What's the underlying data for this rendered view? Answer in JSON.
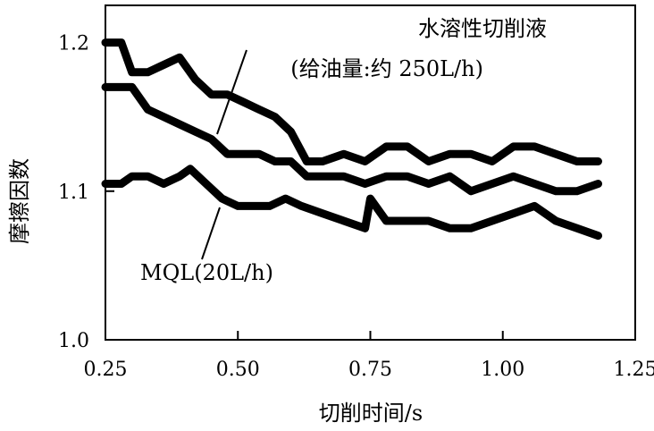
{
  "chart_data": {
    "type": "line",
    "title": "",
    "xlabel": "切削时间/s",
    "ylabel": "摩擦因数",
    "xlim": [
      0.25,
      1.25
    ],
    "ylim": [
      1.0,
      1.225
    ],
    "xticks": [
      0.25,
      0.5,
      0.75,
      1.0,
      1.25
    ],
    "xtick_labels": [
      "0.25",
      "0.50",
      "0.75",
      "1.00",
      "1.25"
    ],
    "yticks": [
      1.0,
      1.1,
      1.2
    ],
    "ytick_labels": [
      "1.0",
      "1.1",
      "1.2"
    ],
    "grid": false,
    "legend": "none",
    "annotations": [
      {
        "text": "水溶性切削液"
      },
      {
        "text": "(给油量:约 250L/h)"
      },
      {
        "text": "MQL(20L/h)"
      }
    ],
    "series": [
      {
        "x": [
          0.25,
          0.28,
          0.3,
          0.33,
          0.36,
          0.39,
          0.42,
          0.45,
          0.48,
          0.51,
          0.54,
          0.57,
          0.6,
          0.63,
          0.66,
          0.7,
          0.74,
          0.78,
          0.82,
          0.86,
          0.9,
          0.94,
          0.98,
          1.02,
          1.06,
          1.1,
          1.14,
          1.18
        ],
        "values": [
          1.2,
          1.2,
          1.18,
          1.18,
          1.185,
          1.19,
          1.175,
          1.165,
          1.165,
          1.16,
          1.155,
          1.15,
          1.14,
          1.12,
          1.12,
          1.125,
          1.12,
          1.13,
          1.13,
          1.12,
          1.125,
          1.125,
          1.12,
          1.13,
          1.13,
          1.125,
          1.12,
          1.12
        ],
        "color": "#000000"
      },
      {
        "x": [
          0.25,
          0.28,
          0.3,
          0.33,
          0.36,
          0.39,
          0.42,
          0.45,
          0.48,
          0.51,
          0.54,
          0.57,
          0.6,
          0.63,
          0.66,
          0.7,
          0.74,
          0.78,
          0.82,
          0.86,
          0.9,
          0.94,
          0.98,
          1.02,
          1.06,
          1.1,
          1.14,
          1.18
        ],
        "values": [
          1.17,
          1.17,
          1.17,
          1.155,
          1.15,
          1.145,
          1.14,
          1.135,
          1.125,
          1.125,
          1.125,
          1.12,
          1.12,
          1.11,
          1.11,
          1.11,
          1.105,
          1.11,
          1.11,
          1.105,
          1.11,
          1.1,
          1.105,
          1.11,
          1.105,
          1.1,
          1.1,
          1.105
        ],
        "color": "#000000"
      },
      {
        "x": [
          0.25,
          0.28,
          0.3,
          0.33,
          0.36,
          0.39,
          0.41,
          0.44,
          0.47,
          0.5,
          0.53,
          0.56,
          0.59,
          0.62,
          0.66,
          0.7,
          0.74,
          0.75,
          0.78,
          0.82,
          0.86,
          0.9,
          0.94,
          0.98,
          1.02,
          1.06,
          1.1,
          1.14,
          1.18
        ],
        "values": [
          1.105,
          1.105,
          1.11,
          1.11,
          1.105,
          1.11,
          1.115,
          1.105,
          1.095,
          1.09,
          1.09,
          1.09,
          1.095,
          1.09,
          1.085,
          1.08,
          1.075,
          1.095,
          1.08,
          1.08,
          1.08,
          1.075,
          1.075,
          1.08,
          1.085,
          1.09,
          1.08,
          1.075,
          1.07
        ],
        "color": "#000000"
      }
    ]
  }
}
